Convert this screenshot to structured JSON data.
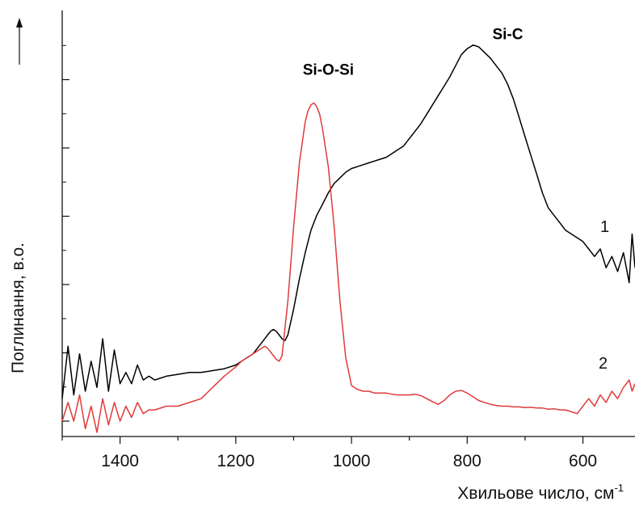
{
  "chart_data": {
    "type": "line",
    "title": "",
    "xlabel": "Хвильове число, см",
    "xlabel_superscript": "-1",
    "ylabel": "Поглинання, в.о.",
    "x_reversed": true,
    "xlim": [
      1500,
      510
    ],
    "ylim": [
      0,
      1
    ],
    "x_ticks": [
      1400,
      1200,
      1000,
      800,
      600
    ],
    "y_ticks_labeled": false,
    "grid": false,
    "legend": "none",
    "annotations": [
      {
        "text": "Si-O-Si",
        "x": 1040,
        "y": 0.925
      },
      {
        "text": "Si-C",
        "x": 730,
        "y": 1.02
      }
    ],
    "series": [
      {
        "name": "1",
        "color": "#000000",
        "x": [
          1500,
          1490,
          1480,
          1470,
          1460,
          1450,
          1440,
          1430,
          1420,
          1410,
          1400,
          1390,
          1380,
          1370,
          1360,
          1350,
          1340,
          1320,
          1300,
          1280,
          1260,
          1240,
          1220,
          1200,
          1190,
          1180,
          1170,
          1160,
          1150,
          1145,
          1140,
          1135,
          1130,
          1125,
          1120,
          1115,
          1110,
          1100,
          1090,
          1080,
          1070,
          1060,
          1050,
          1040,
          1030,
          1020,
          1010,
          1000,
          990,
          980,
          970,
          960,
          950,
          940,
          930,
          920,
          910,
          900,
          890,
          880,
          870,
          860,
          850,
          840,
          830,
          820,
          810,
          800,
          790,
          780,
          770,
          760,
          750,
          740,
          730,
          720,
          710,
          700,
          690,
          680,
          670,
          660,
          650,
          640,
          630,
          620,
          610,
          600,
          590,
          580,
          570,
          560,
          550,
          540,
          530,
          520,
          515,
          510
        ],
        "y": [
          0.06,
          0.2,
          0.07,
          0.18,
          0.08,
          0.16,
          0.09,
          0.22,
          0.08,
          0.19,
          0.1,
          0.13,
          0.1,
          0.15,
          0.11,
          0.12,
          0.11,
          0.12,
          0.125,
          0.13,
          0.13,
          0.135,
          0.14,
          0.15,
          0.16,
          0.17,
          0.18,
          0.2,
          0.22,
          0.23,
          0.24,
          0.245,
          0.24,
          0.23,
          0.22,
          0.215,
          0.23,
          0.3,
          0.38,
          0.45,
          0.51,
          0.55,
          0.58,
          0.61,
          0.635,
          0.65,
          0.665,
          0.675,
          0.68,
          0.685,
          0.69,
          0.695,
          0.7,
          0.705,
          0.715,
          0.725,
          0.735,
          0.755,
          0.775,
          0.795,
          0.82,
          0.845,
          0.87,
          0.895,
          0.92,
          0.95,
          0.98,
          0.995,
          1.005,
          1.0,
          0.985,
          0.97,
          0.95,
          0.93,
          0.9,
          0.86,
          0.81,
          0.76,
          0.71,
          0.66,
          0.61,
          0.57,
          0.55,
          0.53,
          0.51,
          0.5,
          0.49,
          0.48,
          0.46,
          0.44,
          0.46,
          0.41,
          0.44,
          0.4,
          0.45,
          0.37,
          0.5,
          0.41
        ]
      },
      {
        "name": "2",
        "color": "#e03a3a",
        "x": [
          1500,
          1490,
          1480,
          1470,
          1460,
          1450,
          1440,
          1430,
          1420,
          1410,
          1400,
          1390,
          1380,
          1370,
          1360,
          1350,
          1340,
          1320,
          1300,
          1280,
          1260,
          1240,
          1220,
          1200,
          1190,
          1180,
          1170,
          1160,
          1150,
          1145,
          1140,
          1135,
          1130,
          1125,
          1120,
          1110,
          1100,
          1090,
          1080,
          1075,
          1070,
          1065,
          1060,
          1055,
          1050,
          1040,
          1030,
          1020,
          1010,
          1000,
          990,
          980,
          970,
          960,
          950,
          940,
          930,
          920,
          910,
          900,
          890,
          880,
          870,
          860,
          850,
          840,
          830,
          820,
          810,
          800,
          790,
          780,
          770,
          760,
          750,
          740,
          730,
          720,
          710,
          700,
          690,
          680,
          670,
          660,
          650,
          640,
          630,
          620,
          610,
          600,
          590,
          580,
          570,
          560,
          550,
          540,
          530,
          520,
          515,
          510
        ],
        "y": [
          0.0,
          0.05,
          0.0,
          0.07,
          -0.02,
          0.04,
          -0.03,
          0.06,
          -0.01,
          0.05,
          0.0,
          0.04,
          0.01,
          0.05,
          0.02,
          0.03,
          0.03,
          0.04,
          0.04,
          0.05,
          0.06,
          0.09,
          0.12,
          0.145,
          0.16,
          0.17,
          0.18,
          0.19,
          0.2,
          0.195,
          0.185,
          0.175,
          0.165,
          0.16,
          0.175,
          0.32,
          0.52,
          0.69,
          0.8,
          0.83,
          0.845,
          0.85,
          0.84,
          0.82,
          0.78,
          0.68,
          0.52,
          0.32,
          0.17,
          0.095,
          0.085,
          0.08,
          0.08,
          0.075,
          0.075,
          0.075,
          0.072,
          0.07,
          0.07,
          0.07,
          0.072,
          0.068,
          0.06,
          0.052,
          0.045,
          0.055,
          0.07,
          0.08,
          0.082,
          0.075,
          0.065,
          0.055,
          0.05,
          0.045,
          0.042,
          0.04,
          0.04,
          0.038,
          0.038,
          0.036,
          0.037,
          0.035,
          0.035,
          0.032,
          0.033,
          0.03,
          0.03,
          0.025,
          0.02,
          0.04,
          0.06,
          0.04,
          0.07,
          0.05,
          0.08,
          0.06,
          0.09,
          0.11,
          0.08,
          0.1
        ]
      }
    ]
  }
}
